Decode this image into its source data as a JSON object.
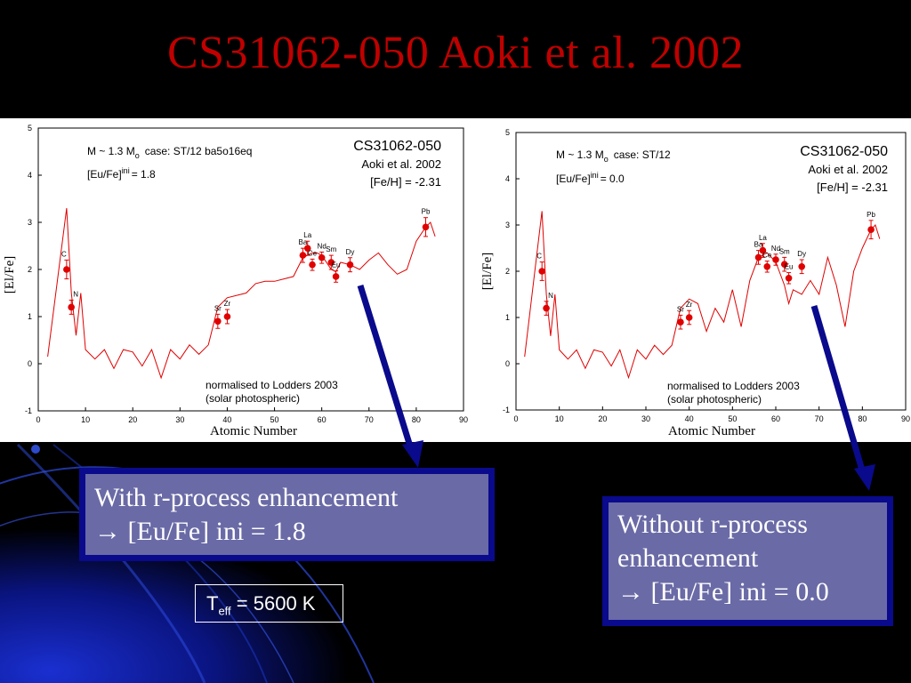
{
  "slide": {
    "title": "CS31062-050 Aoki et al. 2002",
    "callout_left": {
      "line1": "With r-process enhancement",
      "line2": "→ [Eu/Fe] ini = 1.8"
    },
    "callout_right": {
      "line1": "Without r-process",
      "line2": "enhancement",
      "line3": "→ [Eu/Fe] ini = 0.0"
    },
    "teff": {
      "symbol": "T",
      "sub": "eff",
      "value": " = 5600 K"
    },
    "colors": {
      "title": "#c00000",
      "callout_fill": "#6a6aa6",
      "callout_border": "#0a0a8c",
      "arrow": "#0a0a8c",
      "model_line": "#e00000",
      "obs_points": "#e00000"
    }
  },
  "chart_data": [
    {
      "type": "line",
      "panel": "left",
      "xlabel": "Atomic Number",
      "ylabel": "[El/Fe]",
      "xlim": [
        0,
        90
      ],
      "ylim": [
        -1,
        5
      ],
      "xticks": [
        0,
        10,
        20,
        30,
        40,
        50,
        60,
        70,
        80,
        90
      ],
      "yticks": [
        -1,
        0,
        1,
        2,
        3,
        4,
        5
      ],
      "annotations": {
        "model": "M ~ 1.3 M",
        "model_sub": "o",
        "case": "case: ST/12  ba5o16eq",
        "eu_label": "[Eu/Fe]",
        "eu_sup": "ini",
        "eu_val": "= 1.8",
        "star": "CS31062-050",
        "ref": "Aoki et al. 2002",
        "feh": "[Fe/H] = -2.31",
        "norm1": "normalised to Lodders 2003",
        "norm2": "(solar photospheric)"
      },
      "series": [
        {
          "x": [
            2,
            6,
            7,
            8,
            9,
            10,
            12,
            14,
            16,
            18,
            20,
            22,
            24,
            26,
            28,
            30,
            32,
            34,
            36,
            38,
            40,
            44,
            46,
            48,
            50,
            52,
            54,
            56,
            57,
            58,
            59,
            60,
            62,
            63,
            64,
            66,
            68,
            70,
            72,
            74,
            76,
            78,
            80,
            82,
            83,
            84
          ],
          "y": [
            0.15,
            3.3,
            1.5,
            0.6,
            1.5,
            0.3,
            0.1,
            0.3,
            -0.1,
            0.3,
            0.25,
            -0.05,
            0.3,
            -0.3,
            0.3,
            0.1,
            0.4,
            0.2,
            0.4,
            1.2,
            1.4,
            1.5,
            1.7,
            1.75,
            1.75,
            1.8,
            1.85,
            2.25,
            2.3,
            2.35,
            2.35,
            2.3,
            2.0,
            1.95,
            2.15,
            2.1,
            2.0,
            2.2,
            2.35,
            2.1,
            1.9,
            2.0,
            2.6,
            2.9,
            3.0,
            2.7
          ]
        }
      ],
      "observations": [
        {
          "element": "C",
          "x": 6,
          "y": 2.0,
          "err": 0.2
        },
        {
          "element": "N",
          "x": 7,
          "y": 1.2,
          "err": 0.15
        },
        {
          "element": "Sr",
          "x": 38,
          "y": 0.9,
          "err": 0.15
        },
        {
          "element": "Zr",
          "x": 40,
          "y": 1.0,
          "err": 0.15
        },
        {
          "element": "Ba",
          "x": 56,
          "y": 2.3,
          "err": 0.15
        },
        {
          "element": "La",
          "x": 57,
          "y": 2.45,
          "err": 0.15
        },
        {
          "element": "Ce",
          "x": 58,
          "y": 2.1,
          "err": 0.12
        },
        {
          "element": "Nd",
          "x": 60,
          "y": 2.25,
          "err": 0.12
        },
        {
          "element": "Sm",
          "x": 62,
          "y": 2.15,
          "err": 0.15
        },
        {
          "element": "Eu",
          "x": 63,
          "y": 1.85,
          "err": 0.12
        },
        {
          "element": "Dy",
          "x": 66,
          "y": 2.1,
          "err": 0.15
        },
        {
          "element": "Pb",
          "x": 82,
          "y": 2.9,
          "err": 0.2
        }
      ]
    },
    {
      "type": "line",
      "panel": "right",
      "xlabel": "Atomic Number",
      "ylabel": "[El/Fe]",
      "xlim": [
        0,
        90
      ],
      "ylim": [
        -1,
        5
      ],
      "xticks": [
        0,
        10,
        20,
        30,
        40,
        50,
        60,
        70,
        80,
        90
      ],
      "yticks": [
        -1,
        0,
        1,
        2,
        3,
        4,
        5
      ],
      "annotations": {
        "model": "M ~ 1.3 M",
        "model_sub": "o",
        "case": "case: ST/12",
        "eu_label": "[Eu/Fe]",
        "eu_sup": "ini",
        "eu_val": "= 0.0",
        "star": "CS31062-050",
        "ref": "Aoki et al. 2002",
        "feh": "[Fe/H] = -2.31",
        "norm1": "normalised to Lodders 2003",
        "norm2": "(solar photospheric)"
      },
      "series": [
        {
          "x": [
            2,
            6,
            7,
            8,
            9,
            10,
            12,
            14,
            16,
            18,
            20,
            22,
            24,
            26,
            28,
            30,
            32,
            34,
            36,
            38,
            40,
            42,
            44,
            46,
            48,
            50,
            52,
            54,
            56,
            57,
            58,
            60,
            62,
            63,
            64,
            66,
            68,
            70,
            72,
            74,
            76,
            78,
            80,
            82,
            83,
            84
          ],
          "y": [
            0.15,
            3.3,
            1.5,
            0.6,
            1.5,
            0.3,
            0.1,
            0.3,
            -0.1,
            0.3,
            0.25,
            -0.05,
            0.3,
            -0.3,
            0.3,
            0.1,
            0.4,
            0.2,
            0.4,
            1.2,
            1.4,
            1.3,
            0.7,
            1.2,
            0.9,
            1.6,
            0.8,
            1.8,
            2.3,
            2.35,
            2.4,
            2.2,
            1.7,
            1.3,
            1.6,
            1.5,
            1.8,
            1.5,
            2.3,
            1.7,
            0.8,
            2.0,
            2.5,
            2.9,
            3.0,
            2.7
          ]
        }
      ],
      "observations": [
        {
          "element": "C",
          "x": 6,
          "y": 2.0,
          "err": 0.2
        },
        {
          "element": "N",
          "x": 7,
          "y": 1.2,
          "err": 0.15
        },
        {
          "element": "Sr",
          "x": 38,
          "y": 0.9,
          "err": 0.15
        },
        {
          "element": "Zr",
          "x": 40,
          "y": 1.0,
          "err": 0.15
        },
        {
          "element": "Ba",
          "x": 56,
          "y": 2.3,
          "err": 0.15
        },
        {
          "element": "La",
          "x": 57,
          "y": 2.45,
          "err": 0.15
        },
        {
          "element": "Ce",
          "x": 58,
          "y": 2.1,
          "err": 0.12
        },
        {
          "element": "Nd",
          "x": 60,
          "y": 2.25,
          "err": 0.12
        },
        {
          "element": "Sm",
          "x": 62,
          "y": 2.15,
          "err": 0.15
        },
        {
          "element": "Eu",
          "x": 63,
          "y": 1.85,
          "err": 0.12
        },
        {
          "element": "Dy",
          "x": 66,
          "y": 2.1,
          "err": 0.15
        },
        {
          "element": "Pb",
          "x": 82,
          "y": 2.9,
          "err": 0.2
        }
      ]
    }
  ]
}
